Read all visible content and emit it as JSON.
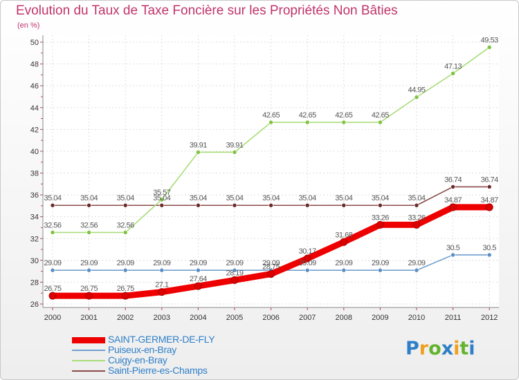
{
  "chart_data": {
    "type": "line",
    "title": "Evolution du Taux de Taxe Foncière sur les Propriétés Non Bâties",
    "ylabel": "(en %)",
    "xlabel": "",
    "categories": [
      "2000",
      "2001",
      "2002",
      "2003",
      "2004",
      "2005",
      "2006",
      "2007",
      "2008",
      "2009",
      "2010",
      "2011",
      "2012"
    ],
    "ylim": [
      26,
      50
    ],
    "yticks": [
      26,
      28,
      30,
      32,
      34,
      36,
      38,
      40,
      42,
      44,
      46,
      48,
      50
    ],
    "grid": true,
    "legend_position": "bottom-left",
    "series": [
      {
        "name": "SAINT-GERMER-DE-FLY",
        "color": "#ee0000",
        "marker": "#dd0000",
        "values": [
          26.75,
          26.75,
          26.75,
          27.1,
          27.64,
          28.19,
          28.75,
          30.17,
          31.68,
          33.26,
          33.26,
          34.87,
          34.87
        ],
        "labels": [
          "26.75",
          "26.75",
          "26.75",
          "27.1",
          "27.64",
          "28.19",
          "28.75",
          "30.17",
          "31.68",
          "33.26",
          "33.26",
          "34.87",
          "34.87"
        ]
      },
      {
        "name": "Puiseux-en-Bray",
        "color": "#6f9fcf",
        "marker": "#5b8fc4",
        "values": [
          29.09,
          29.09,
          29.09,
          29.09,
          29.09,
          29.09,
          29.09,
          29.09,
          29.09,
          29.09,
          29.09,
          30.5,
          30.5
        ],
        "labels": [
          "29.09",
          "29.09",
          "29.09",
          "29.09",
          "29.09",
          "29.09",
          "29.09",
          "29.09",
          "29.09",
          "29.09",
          "29.09",
          "30.5",
          "30.5"
        ]
      },
      {
        "name": "Cuigy-en-Bray",
        "color": "#a8dd78",
        "marker": "#7fc242",
        "values": [
          32.56,
          32.56,
          32.56,
          35.57,
          39.91,
          39.91,
          42.65,
          42.65,
          42.65,
          42.65,
          44.95,
          47.13,
          49.53
        ],
        "labels": [
          "32.56",
          "32.56",
          "32.56",
          "35.57",
          "39.91",
          "39.91",
          "42.65",
          "42.65",
          "42.65",
          "42.65",
          "44.95",
          "47.13",
          "49.53"
        ]
      },
      {
        "name": "Saint-Pierre-es-Champs",
        "color": "#8a4a4a",
        "marker": "#6b2a2a",
        "values": [
          35.04,
          35.04,
          35.04,
          35.04,
          35.04,
          35.04,
          35.04,
          35.04,
          35.04,
          35.04,
          35.04,
          36.74,
          36.74
        ],
        "labels": [
          "35.04",
          "35.04",
          "35.04",
          "35.04",
          "35.04",
          "35.04",
          "35.04",
          "35.04",
          "35.04",
          "35.04",
          "35.04",
          "36.74",
          "36.74"
        ]
      }
    ]
  },
  "logo": {
    "letters": [
      "P",
      "r",
      "o",
      "x",
      "i",
      "t",
      "i"
    ],
    "colors": [
      "#2e7fc8",
      "#f0a020",
      "#63b32e",
      "#2e7fc8",
      "#f0a020",
      "#63b32e",
      "#2e7fc8"
    ]
  }
}
